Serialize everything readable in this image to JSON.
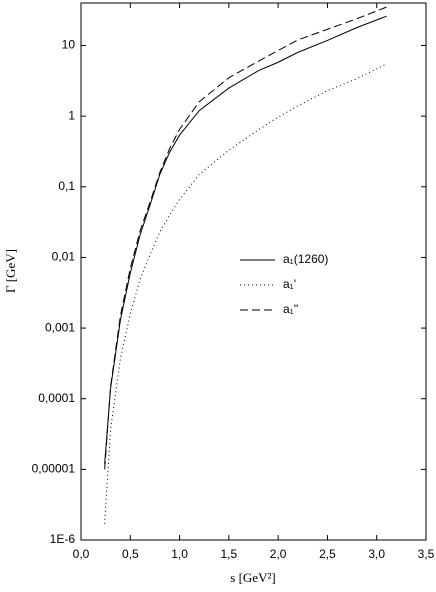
{
  "chart_data": {
    "type": "line",
    "x_label": "s [GeV²]",
    "y_label": "Γ [GeV]",
    "x": [
      0.24,
      0.3,
      0.4,
      0.5,
      0.6,
      0.7,
      0.8,
      0.9,
      1.0,
      1.2,
      1.5,
      1.8,
      2.0,
      2.2,
      2.5,
      2.8,
      3.1
    ],
    "series": [
      {
        "name": "a₁(1260)",
        "color": "#000000",
        "dash": "solid",
        "values": [
          1.2e-05,
          0.00014,
          0.0013,
          0.006,
          0.021,
          0.055,
          0.15,
          0.31,
          0.54,
          1.2,
          2.5,
          4.4,
          5.8,
          8,
          11.8,
          18,
          26
        ]
      },
      {
        "name": "a₁'",
        "color": "#000000",
        "dash": "dotted",
        "values": [
          1.7e-06,
          3.7e-05,
          0.00037,
          0.0016,
          0.0049,
          0.011,
          0.023,
          0.04,
          0.066,
          0.15,
          0.33,
          0.64,
          0.97,
          1.4,
          2.3,
          3.4,
          5.5
        ]
      },
      {
        "name": "a₁''",
        "color": "#000000",
        "dash": "dashed",
        "values": [
          1e-05,
          0.00015,
          0.0015,
          0.007,
          0.024,
          0.06,
          0.16,
          0.35,
          0.65,
          1.6,
          3.5,
          6,
          8.5,
          12,
          17,
          24,
          35
        ]
      }
    ],
    "xlim": [
      0,
      3.5
    ],
    "xticks": [
      {
        "value": 0,
        "label": "0,0"
      },
      {
        "value": 0.5,
        "label": "0,5"
      },
      {
        "value": 1,
        "label": "1,0"
      },
      {
        "value": 1.5,
        "label": "1,5"
      },
      {
        "value": 2,
        "label": "2,0"
      },
      {
        "value": 2.5,
        "label": "2,5"
      },
      {
        "value": 3,
        "label": "3,0"
      },
      {
        "value": 3.5,
        "label": "3,5"
      }
    ],
    "ylim": [
      1e-06,
      40
    ],
    "y_log": true,
    "yticks": [
      {
        "value": 1e-06,
        "label": "1E-6"
      },
      {
        "value": 1e-05,
        "label": "0,00001"
      },
      {
        "value": 0.0001,
        "label": "0,0001"
      },
      {
        "value": 0.001,
        "label": "0,001"
      },
      {
        "value": 0.01,
        "label": "0,01"
      },
      {
        "value": 0.1,
        "label": "0,1"
      },
      1,
      10
    ],
    "grid": false
  }
}
